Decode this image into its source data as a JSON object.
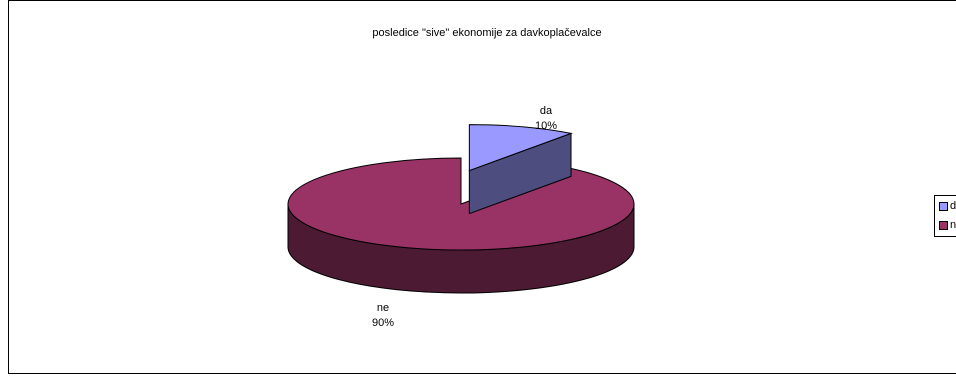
{
  "chart_data": {
    "type": "pie",
    "title": "posledice \"sive\" ekonomije za davkoplačevalce",
    "categories": [
      "da",
      "ne"
    ],
    "values": [
      10,
      90
    ],
    "data_labels": [
      {
        "category": "da",
        "percent": "10%"
      },
      {
        "category": "ne",
        "percent": "90%"
      }
    ],
    "colors": {
      "da": "#9999FF",
      "ne": "#993366"
    },
    "side_colors": {
      "da": "#4D4D80",
      "ne": "#4D1A33"
    },
    "legend": {
      "placement": "right",
      "items": [
        "da",
        "ne"
      ]
    },
    "style": "3d-exploded"
  }
}
